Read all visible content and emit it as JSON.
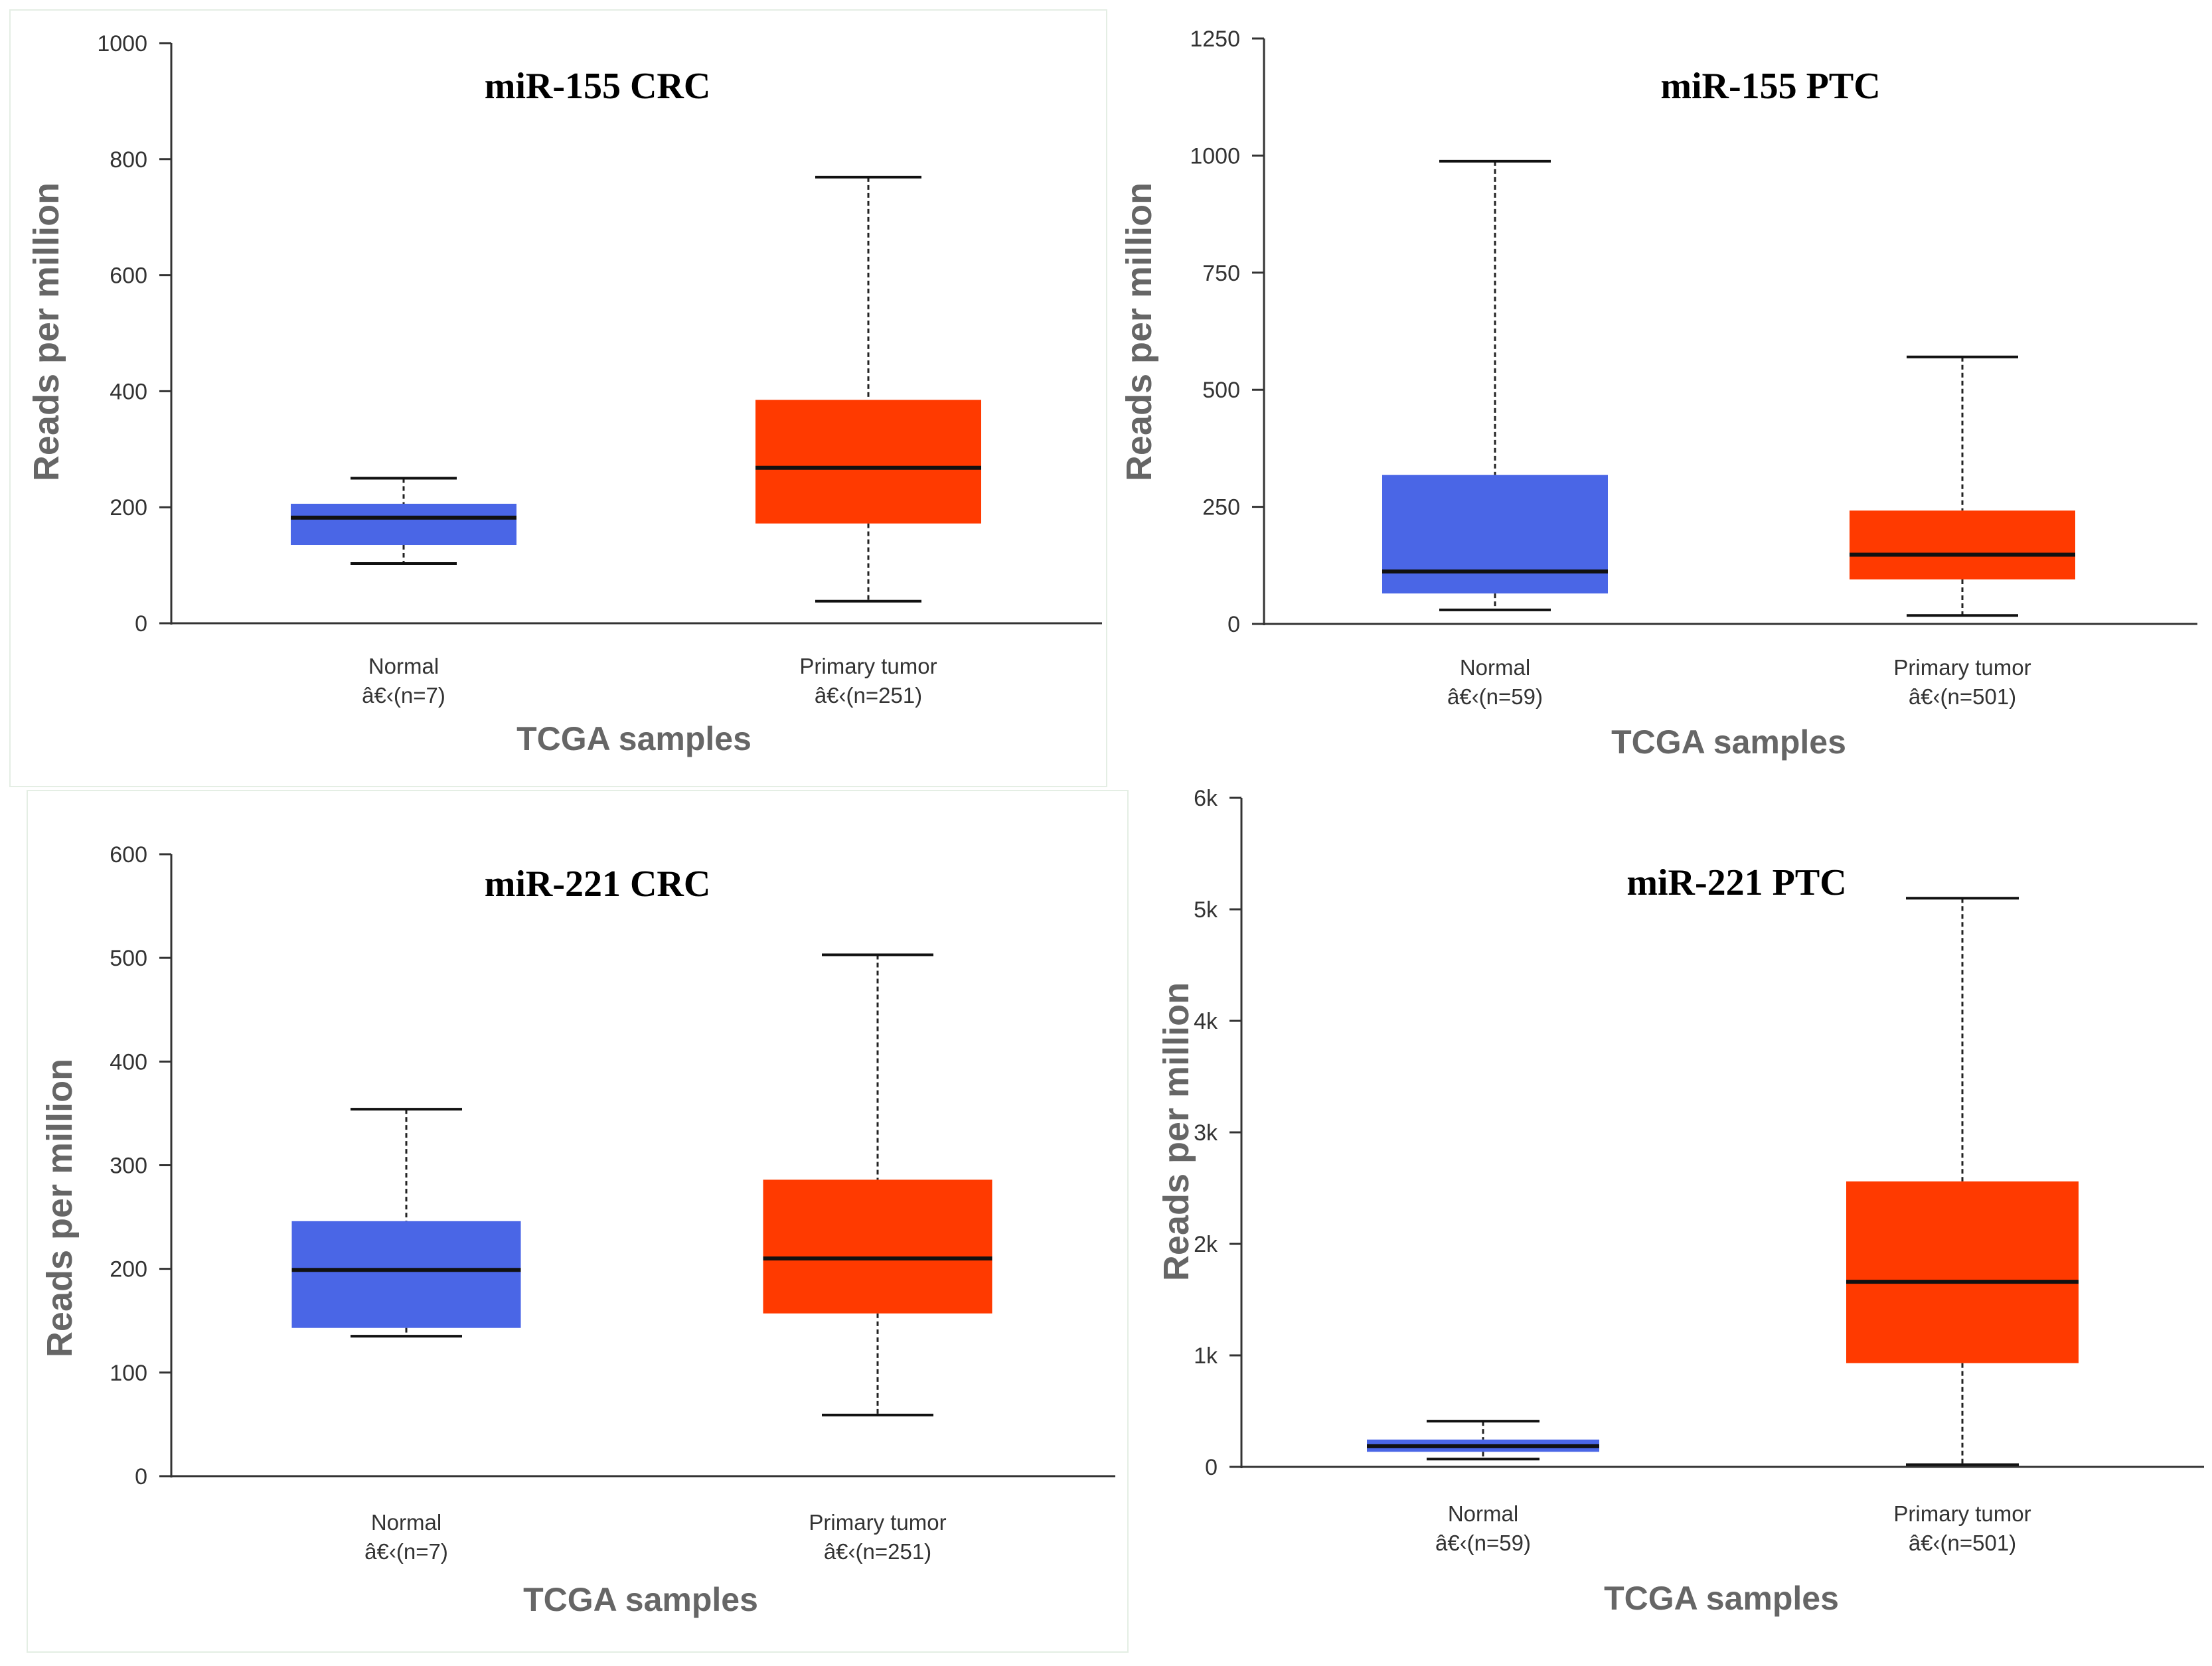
{
  "colors": {
    "normal": "#4a66e6",
    "tumor": "#ff3a00",
    "axis": "#333333",
    "median": "#111111"
  },
  "chart_data": [
    {
      "type": "box",
      "title": "miR-155 CRC",
      "ylabel": "Reads per million",
      "xlabel": "TCGA samples",
      "ylim": [
        0,
        1000
      ],
      "yticks": [
        0,
        200,
        400,
        600,
        800,
        1000
      ],
      "yticklabels": [
        "0",
        "200",
        "400",
        "600",
        "800",
        "1000"
      ],
      "groups": [
        {
          "name": "Normal",
          "n_label": "â€‹(n=7)",
          "color": "normal",
          "whisker_low": 103,
          "q1": 135,
          "median": 182,
          "q3": 206,
          "whisker_high": 250
        },
        {
          "name": "Primary tumor",
          "n_label": "â€‹(n=251)",
          "color": "tumor",
          "whisker_low": 38,
          "q1": 172,
          "median": 268,
          "q3": 385,
          "whisker_high": 769
        }
      ]
    },
    {
      "type": "box",
      "title": "miR-155 PTC",
      "ylabel": "Reads per million",
      "xlabel": "TCGA samples",
      "ylim": [
        0,
        1250
      ],
      "yticks": [
        0,
        250,
        500,
        750,
        1000,
        1250
      ],
      "yticklabels": [
        "0",
        "250",
        "500",
        "750",
        "1000",
        "1250"
      ],
      "groups": [
        {
          "name": "Normal",
          "n_label": "â€‹(n=59)",
          "color": "normal",
          "whisker_low": 30,
          "q1": 65,
          "median": 112,
          "q3": 318,
          "whisker_high": 988
        },
        {
          "name": "Primary tumor",
          "n_label": "â€‹(n=501)",
          "color": "tumor",
          "whisker_low": 18,
          "q1": 95,
          "median": 148,
          "q3": 242,
          "whisker_high": 570
        }
      ]
    },
    {
      "type": "box",
      "title": "miR-221 CRC",
      "ylabel": "Reads per million",
      "xlabel": "TCGA samples",
      "ylim": [
        0,
        600
      ],
      "yticks": [
        0,
        100,
        200,
        300,
        400,
        500,
        600
      ],
      "yticklabels": [
        "0",
        "100",
        "200",
        "300",
        "400",
        "500",
        "600"
      ],
      "groups": [
        {
          "name": "Normal",
          "n_label": "â€‹(n=7)",
          "color": "normal",
          "whisker_low": 135,
          "q1": 143,
          "median": 199,
          "q3": 246,
          "whisker_high": 354
        },
        {
          "name": "Primary tumor",
          "n_label": "â€‹(n=251)",
          "color": "tumor",
          "whisker_low": 59,
          "q1": 157,
          "median": 210,
          "q3": 286,
          "whisker_high": 503
        }
      ]
    },
    {
      "type": "box",
      "title": "miR-221 PTC",
      "ylabel": "Reads per million",
      "xlabel": "TCGA samples",
      "ylim": [
        0,
        6000
      ],
      "yticks": [
        0,
        1000,
        2000,
        3000,
        4000,
        5000,
        6000
      ],
      "yticklabels": [
        "0",
        "1k",
        "2k",
        "3k",
        "4k",
        "5k",
        "6k"
      ],
      "groups": [
        {
          "name": "Normal",
          "n_label": "â€‹(n=59)",
          "color": "normal",
          "whisker_low": 70,
          "q1": 135,
          "median": 185,
          "q3": 245,
          "whisker_high": 410
        },
        {
          "name": "Primary tumor",
          "n_label": "â€‹(n=501)",
          "color": "tumor",
          "whisker_low": 20,
          "q1": 930,
          "median": 1660,
          "q3": 2560,
          "whisker_high": 5100
        }
      ]
    }
  ]
}
